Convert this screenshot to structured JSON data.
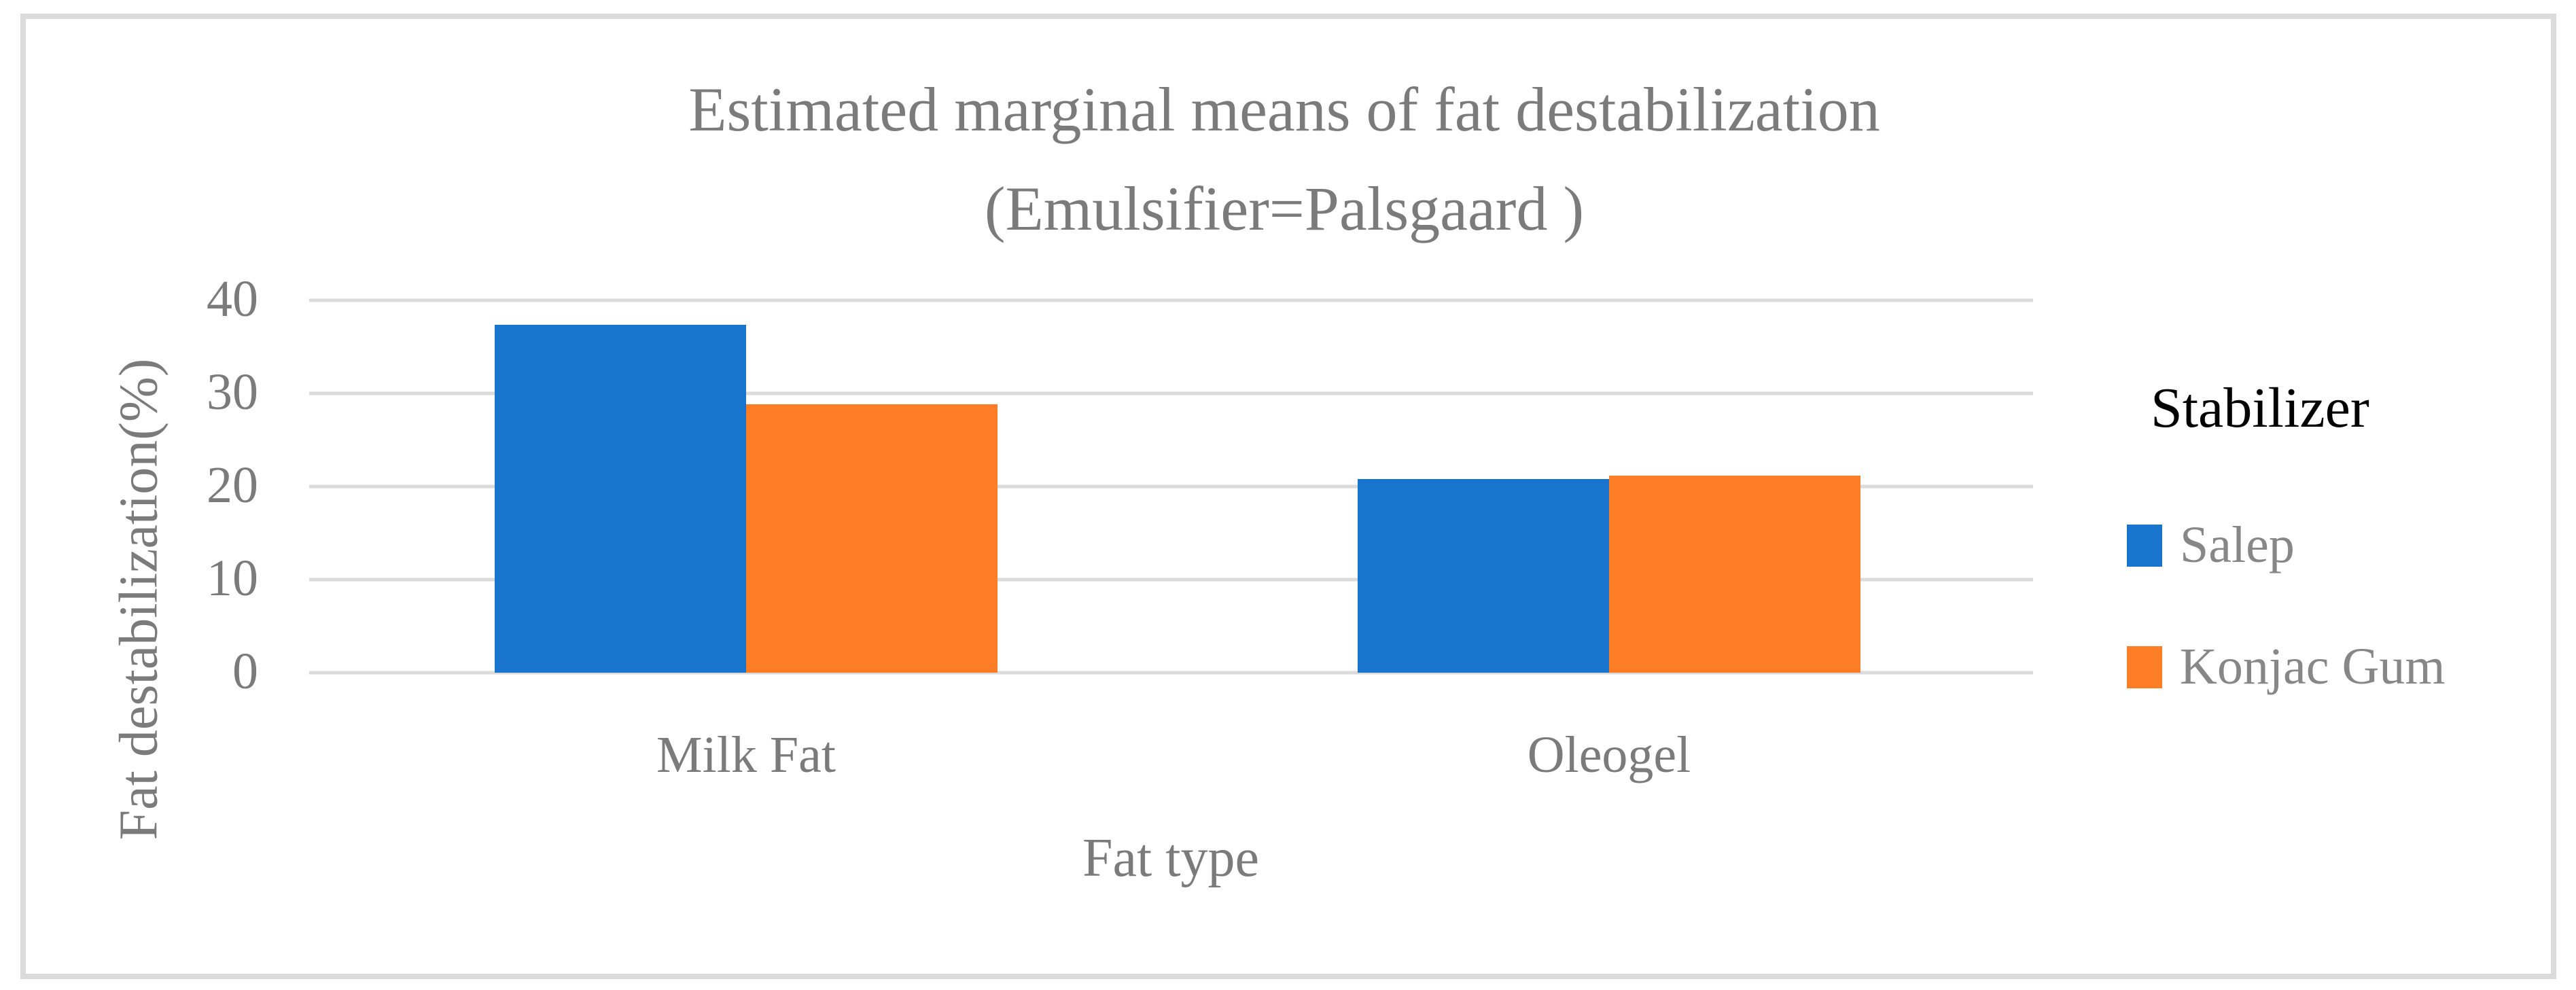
{
  "figure": {
    "border_color": "#dbdbdb",
    "background_color": "#ffffff",
    "text_gray": "#7b7b7b",
    "gridline_color": "#dbdbdb"
  },
  "chart_data": {
    "type": "bar",
    "title_line1": "Estimated marginal means of fat destabilization",
    "title_line2": "(Emulsifier=Palsgaard )",
    "xlabel": "Fat type",
    "ylabel": "Fat destabilization(%)",
    "categories": [
      "Milk Fat",
      "Oleogel"
    ],
    "series": [
      {
        "name": "Salep",
        "color": "#1874cd",
        "values": [
          37.4,
          20.8
        ]
      },
      {
        "name": "Konjac Gum",
        "color": "#fc7d26",
        "values": [
          28.8,
          21.2
        ]
      }
    ],
    "yticks": [
      40,
      30,
      20,
      10,
      0
    ],
    "ylim": [
      0,
      40
    ],
    "grid": true,
    "legend_title": "Stabilizer",
    "legend_position": "right"
  }
}
